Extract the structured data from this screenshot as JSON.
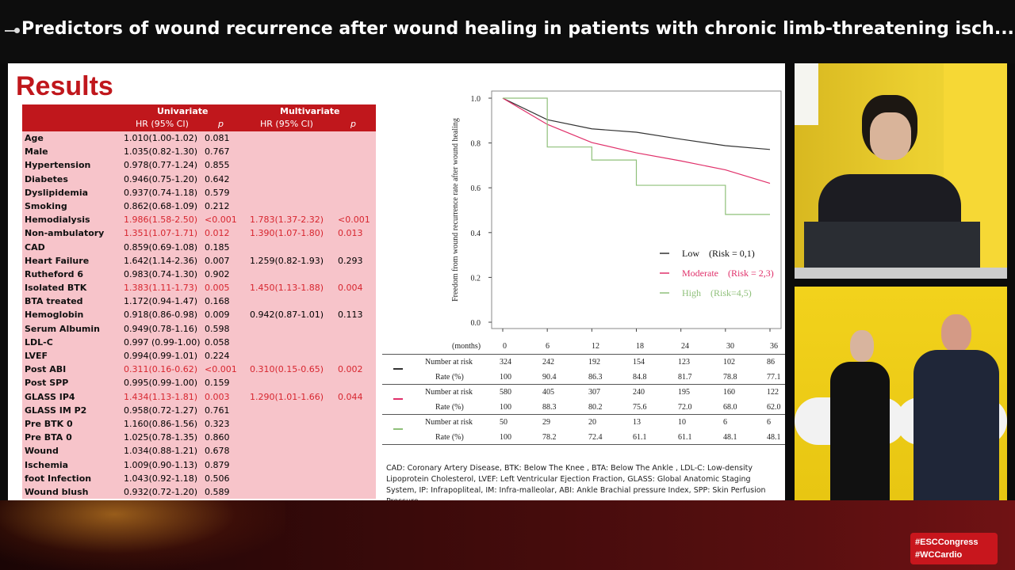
{
  "header": {
    "title": "Predictors of wound recurrence after wound healing in patients with chronic limb-threatening isch..."
  },
  "slide": {
    "heading": "Results",
    "table": {
      "group_headers": [
        "Univariate",
        "Multivariate"
      ],
      "col_headers": [
        "HR (95% CI)",
        "p",
        "HR (95% CI)",
        "p"
      ],
      "rows": [
        {
          "name": "Age",
          "uhr": "1.010(1.00-1.02)",
          "up": "0.081",
          "mhr": "",
          "mp": ""
        },
        {
          "name": "Male",
          "uhr": "1.035(0.82-1.30)",
          "up": "0.767",
          "mhr": "",
          "mp": ""
        },
        {
          "name": "Hypertension",
          "uhr": "0.978(0.77-1.24)",
          "up": "0.855",
          "mhr": "",
          "mp": ""
        },
        {
          "name": "Diabetes",
          "uhr": "0.946(0.75-1.20)",
          "up": "0.642",
          "mhr": "",
          "mp": ""
        },
        {
          "name": "Dyslipidemia",
          "uhr": "0.937(0.74-1.18)",
          "up": "0.579",
          "mhr": "",
          "mp": ""
        },
        {
          "name": "Smoking",
          "uhr": "0.862(0.68-1.09)",
          "up": "0.212",
          "mhr": "",
          "mp": ""
        },
        {
          "name": "Hemodialysis",
          "uhr": "1.986(1.58-2.50)",
          "up": "<0.001",
          "mhr": "1.783(1.37-2.32)",
          "mp": "<0.001",
          "sig": true,
          "msig": true
        },
        {
          "name": "Non-ambulatory",
          "uhr": "1.351(1.07-1.71)",
          "up": "0.012",
          "mhr": "1.390(1.07-1.80)",
          "mp": "0.013",
          "sig": true,
          "msig": true
        },
        {
          "name": "CAD",
          "uhr": "0.859(0.69-1.08)",
          "up": "0.185",
          "mhr": "",
          "mp": ""
        },
        {
          "name": "Heart Failure",
          "uhr": "1.642(1.14-2.36)",
          "up": "0.007",
          "mhr": "1.259(0.82-1.93)",
          "mp": "0.293"
        },
        {
          "name": "Rutheford 6",
          "uhr": "0.983(0.74-1.30)",
          "up": "0.902",
          "mhr": "",
          "mp": ""
        },
        {
          "name": "Isolated BTK",
          "uhr": "1.383(1.11-1.73)",
          "up": "0.005",
          "mhr": "1.450(1.13-1.88)",
          "mp": "0.004",
          "sig": true,
          "msig": true
        },
        {
          "name": "BTA treated",
          "uhr": "1.172(0.94-1.47)",
          "up": "0.168",
          "mhr": "",
          "mp": ""
        },
        {
          "name": "Hemoglobin",
          "uhr": "0.918(0.86-0.98)",
          "up": "0.009",
          "mhr": "0.942(0.87-1.01)",
          "mp": "0.113"
        },
        {
          "name": "Serum Albumin",
          "uhr": "0.949(0.78-1.16)",
          "up": "0.598",
          "mhr": "",
          "mp": ""
        },
        {
          "name": "LDL-C",
          "uhr": "0.997 (0.99-1.00)",
          "up": "0.058",
          "mhr": "",
          "mp": ""
        },
        {
          "name": "LVEF",
          "uhr": "0.994(0.99-1.01)",
          "up": "0.224",
          "mhr": "",
          "mp": ""
        },
        {
          "name": "Post ABI",
          "uhr": "0.311(0.16-0.62)",
          "up": "<0.001",
          "mhr": "0.310(0.15-0.65)",
          "mp": "0.002",
          "sig": true,
          "msig": true
        },
        {
          "name": "Post SPP",
          "uhr": "0.995(0.99-1.00)",
          "up": "0.159",
          "mhr": "",
          "mp": ""
        },
        {
          "name": "GLASS IP4",
          "uhr": "1.434(1.13-1.81)",
          "up": "0.003",
          "mhr": "1.290(1.01-1.66)",
          "mp": "0.044",
          "sig": true,
          "msig": true
        },
        {
          "name": "GLASS IM P2",
          "uhr": "0.958(0.72-1.27)",
          "up": "0.761",
          "mhr": "",
          "mp": ""
        },
        {
          "name": "Pre BTK 0",
          "uhr": "1.160(0.86-1.56)",
          "up": "0.323",
          "mhr": "",
          "mp": ""
        },
        {
          "name": "Pre BTA 0",
          "uhr": "1.025(0.78-1.35)",
          "up": "0.860",
          "mhr": "",
          "mp": ""
        },
        {
          "name": "Wound",
          "uhr": "1.034(0.88-1.21)",
          "up": "0.678",
          "mhr": "",
          "mp": ""
        },
        {
          "name": "Ischemia",
          "uhr": "1.009(0.90-1.13)",
          "up": "0.879",
          "mhr": "",
          "mp": ""
        },
        {
          "name": "foot Infection",
          "uhr": "1.043(0.92-1.18)",
          "up": "0.506",
          "mhr": "",
          "mp": ""
        },
        {
          "name": "Wound blush",
          "uhr": "0.932(0.72-1.20)",
          "up": "0.589",
          "mhr": "",
          "mp": ""
        }
      ]
    },
    "abbreviations": "CAD: Coronary Artery Disease, BTK: Below The Knee , BTA: Below The Ankle , LDL-C: Low-density Lipoprotein Cholesterol, LVEF: Left Ventricular Ejection Fraction, GLASS: Global Anatomic Staging System, IP: Infrapopliteal, IM: Infra-malleolar, ABI: Ankle Brachial pressure Index, SPP: Skin Perfusion Pressure"
  },
  "chart_data": {
    "type": "line",
    "ylabel": "Freedom from wound recurrence rate after wound healing",
    "xlabel": "(months)",
    "x": [
      0,
      6,
      12,
      18,
      24,
      30,
      36
    ],
    "xlim": [
      0,
      36
    ],
    "ylim": [
      0,
      1.0
    ],
    "yticks": [
      "0.0",
      "0.2",
      "0.4",
      "0.6",
      "0.8",
      "1.0"
    ],
    "legend_position": "bottom-right",
    "series": [
      {
        "name": "Low　(Risk = 0,1)",
        "color": "#333333",
        "values": [
          1.0,
          0.904,
          0.863,
          0.848,
          0.817,
          0.788,
          0.771
        ],
        "at_risk": [
          324,
          242,
          192,
          154,
          123,
          102,
          86
        ],
        "rate": [
          "100",
          "90.4",
          "86.3",
          "84.8",
          "81.7",
          "78.8",
          "77.1"
        ]
      },
      {
        "name": "Moderate　(Risk = 2,3)",
        "color": "#e0306a",
        "values": [
          1.0,
          0.883,
          0.802,
          0.756,
          0.72,
          0.68,
          0.62
        ],
        "at_risk": [
          580,
          405,
          307,
          240,
          195,
          160,
          122
        ],
        "rate": [
          "100",
          "88.3",
          "80.2",
          "75.6",
          "72.0",
          "68.0",
          "62.0"
        ]
      },
      {
        "name": "High　(Risk=4,5)",
        "color": "#8fc07a",
        "values": [
          1.0,
          0.782,
          0.724,
          0.611,
          0.611,
          0.481,
          0.481
        ],
        "at_risk": [
          50,
          29,
          20,
          13,
          10,
          6,
          6
        ],
        "rate": [
          "100",
          "78.2",
          "72.4",
          "61.1",
          "61.1",
          "48.1",
          "48.1"
        ]
      }
    ],
    "risk_table_labels": {
      "number": "Number at risk",
      "rate": "Rate (%)"
    }
  },
  "footer": {
    "hashtags": [
      "#ESCCongress",
      "#WCCardio"
    ]
  }
}
